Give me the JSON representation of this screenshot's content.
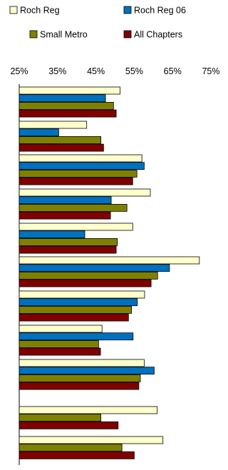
{
  "chart_data": {
    "type": "bar",
    "orientation": "horizontal",
    "title": "",
    "xlabel": "",
    "ylabel": "",
    "xlim": [
      25,
      75
    ],
    "ticks": [
      25,
      35,
      45,
      55,
      65,
      75
    ],
    "tick_labels": [
      "25%",
      "35%",
      "45%",
      "55%",
      "65%",
      "75%"
    ],
    "grid": false,
    "legend_position": "top",
    "categories": [
      "",
      "",
      "",
      "",
      "",
      "",
      "",
      "",
      "",
      "",
      ""
    ],
    "series": [
      {
        "name": "Roch Reg",
        "color": "#ffffcc",
        "values": [
          51.3,
          42.6,
          57.0,
          59.2,
          54.6,
          72.0,
          57.7,
          46.6,
          57.6,
          61.0,
          62.5
        ]
      },
      {
        "name": "Roch Reg 06",
        "color": "#0070c0",
        "values": [
          47.5,
          35.3,
          57.6,
          49.0,
          42.1,
          64.2,
          55.8,
          54.7,
          60.2,
          null,
          null
        ]
      },
      {
        "name": "Small Metro",
        "color": "#808000",
        "values": [
          49.6,
          46.3,
          55.7,
          53.1,
          50.6,
          61.1,
          54.3,
          45.7,
          56.6,
          46.3,
          51.8
        ]
      },
      {
        "name": "All Chapters",
        "color": "#800000",
        "values": [
          50.3,
          47.0,
          54.6,
          48.8,
          50.3,
          59.4,
          53.5,
          46.2,
          56.2,
          50.8,
          55.0
        ]
      }
    ]
  }
}
